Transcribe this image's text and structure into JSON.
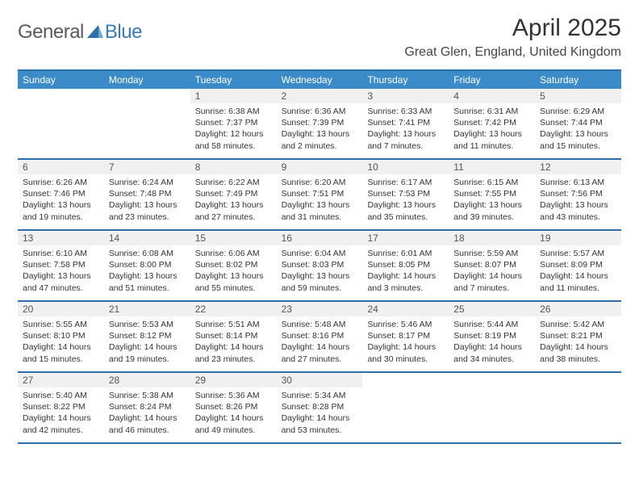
{
  "logo": {
    "part1": "General",
    "part2": "Blue"
  },
  "title": "April 2025",
  "location": "Great Glen, England, United Kingdom",
  "colors": {
    "header_bg": "#3b8bc8",
    "border": "#2f6fa8",
    "daynum_bg": "#f0f0f0",
    "logo_gray": "#5a5a5a",
    "logo_blue": "#3a7ab8"
  },
  "day_names": [
    "Sunday",
    "Monday",
    "Tuesday",
    "Wednesday",
    "Thursday",
    "Friday",
    "Saturday"
  ],
  "weeks": [
    [
      null,
      null,
      {
        "n": "1",
        "sunrise": "6:38 AM",
        "sunset": "7:37 PM",
        "daylight": "12 hours and 58 minutes."
      },
      {
        "n": "2",
        "sunrise": "6:36 AM",
        "sunset": "7:39 PM",
        "daylight": "13 hours and 2 minutes."
      },
      {
        "n": "3",
        "sunrise": "6:33 AM",
        "sunset": "7:41 PM",
        "daylight": "13 hours and 7 minutes."
      },
      {
        "n": "4",
        "sunrise": "6:31 AM",
        "sunset": "7:42 PM",
        "daylight": "13 hours and 11 minutes."
      },
      {
        "n": "5",
        "sunrise": "6:29 AM",
        "sunset": "7:44 PM",
        "daylight": "13 hours and 15 minutes."
      }
    ],
    [
      {
        "n": "6",
        "sunrise": "6:26 AM",
        "sunset": "7:46 PM",
        "daylight": "13 hours and 19 minutes."
      },
      {
        "n": "7",
        "sunrise": "6:24 AM",
        "sunset": "7:48 PM",
        "daylight": "13 hours and 23 minutes."
      },
      {
        "n": "8",
        "sunrise": "6:22 AM",
        "sunset": "7:49 PM",
        "daylight": "13 hours and 27 minutes."
      },
      {
        "n": "9",
        "sunrise": "6:20 AM",
        "sunset": "7:51 PM",
        "daylight": "13 hours and 31 minutes."
      },
      {
        "n": "10",
        "sunrise": "6:17 AM",
        "sunset": "7:53 PM",
        "daylight": "13 hours and 35 minutes."
      },
      {
        "n": "11",
        "sunrise": "6:15 AM",
        "sunset": "7:55 PM",
        "daylight": "13 hours and 39 minutes."
      },
      {
        "n": "12",
        "sunrise": "6:13 AM",
        "sunset": "7:56 PM",
        "daylight": "13 hours and 43 minutes."
      }
    ],
    [
      {
        "n": "13",
        "sunrise": "6:10 AM",
        "sunset": "7:58 PM",
        "daylight": "13 hours and 47 minutes."
      },
      {
        "n": "14",
        "sunrise": "6:08 AM",
        "sunset": "8:00 PM",
        "daylight": "13 hours and 51 minutes."
      },
      {
        "n": "15",
        "sunrise": "6:06 AM",
        "sunset": "8:02 PM",
        "daylight": "13 hours and 55 minutes."
      },
      {
        "n": "16",
        "sunrise": "6:04 AM",
        "sunset": "8:03 PM",
        "daylight": "13 hours and 59 minutes."
      },
      {
        "n": "17",
        "sunrise": "6:01 AM",
        "sunset": "8:05 PM",
        "daylight": "14 hours and 3 minutes."
      },
      {
        "n": "18",
        "sunrise": "5:59 AM",
        "sunset": "8:07 PM",
        "daylight": "14 hours and 7 minutes."
      },
      {
        "n": "19",
        "sunrise": "5:57 AM",
        "sunset": "8:09 PM",
        "daylight": "14 hours and 11 minutes."
      }
    ],
    [
      {
        "n": "20",
        "sunrise": "5:55 AM",
        "sunset": "8:10 PM",
        "daylight": "14 hours and 15 minutes."
      },
      {
        "n": "21",
        "sunrise": "5:53 AM",
        "sunset": "8:12 PM",
        "daylight": "14 hours and 19 minutes."
      },
      {
        "n": "22",
        "sunrise": "5:51 AM",
        "sunset": "8:14 PM",
        "daylight": "14 hours and 23 minutes."
      },
      {
        "n": "23",
        "sunrise": "5:48 AM",
        "sunset": "8:16 PM",
        "daylight": "14 hours and 27 minutes."
      },
      {
        "n": "24",
        "sunrise": "5:46 AM",
        "sunset": "8:17 PM",
        "daylight": "14 hours and 30 minutes."
      },
      {
        "n": "25",
        "sunrise": "5:44 AM",
        "sunset": "8:19 PM",
        "daylight": "14 hours and 34 minutes."
      },
      {
        "n": "26",
        "sunrise": "5:42 AM",
        "sunset": "8:21 PM",
        "daylight": "14 hours and 38 minutes."
      }
    ],
    [
      {
        "n": "27",
        "sunrise": "5:40 AM",
        "sunset": "8:22 PM",
        "daylight": "14 hours and 42 minutes."
      },
      {
        "n": "28",
        "sunrise": "5:38 AM",
        "sunset": "8:24 PM",
        "daylight": "14 hours and 46 minutes."
      },
      {
        "n": "29",
        "sunrise": "5:36 AM",
        "sunset": "8:26 PM",
        "daylight": "14 hours and 49 minutes."
      },
      {
        "n": "30",
        "sunrise": "5:34 AM",
        "sunset": "8:28 PM",
        "daylight": "14 hours and 53 minutes."
      },
      null,
      null,
      null
    ]
  ],
  "labels": {
    "sunrise": "Sunrise:",
    "sunset": "Sunset:",
    "daylight": "Daylight:"
  }
}
